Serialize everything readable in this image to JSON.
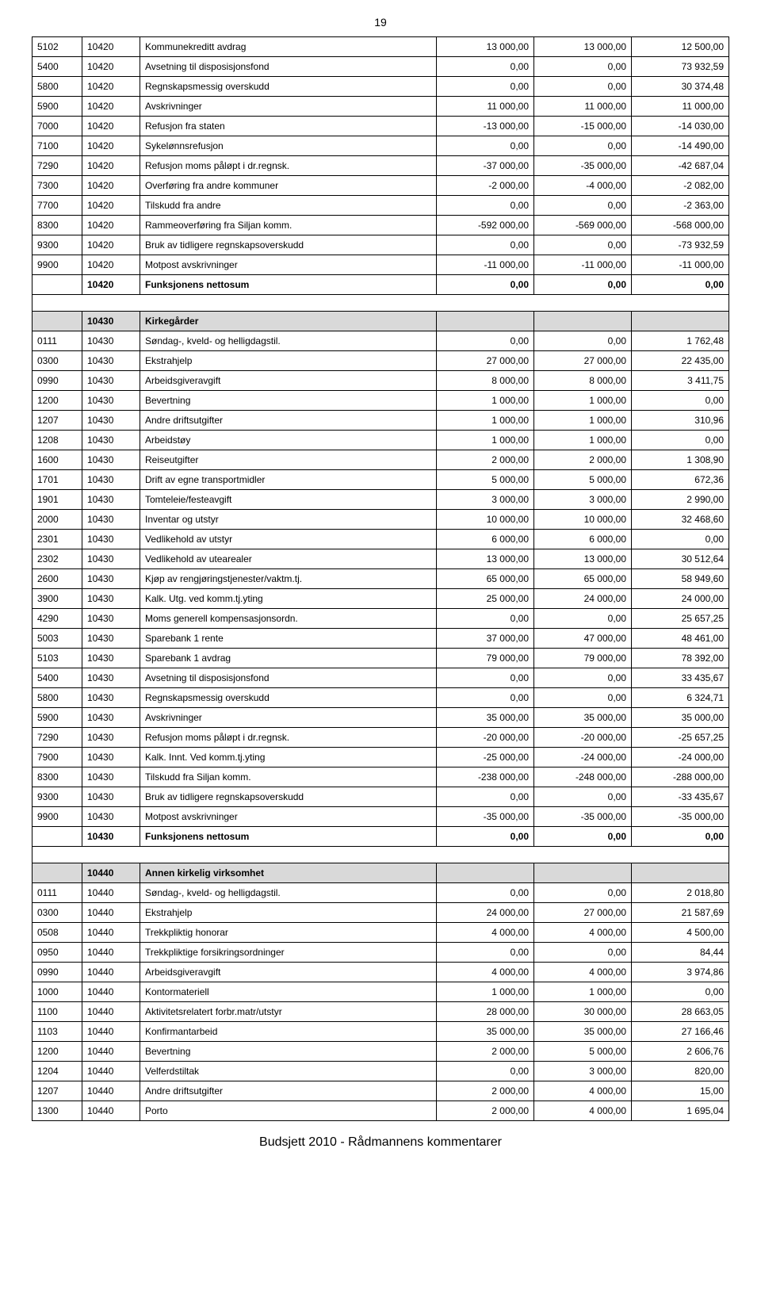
{
  "page_number": "19",
  "footer": "Budsjett 2010 - Rådmannens kommentarer",
  "sections": [
    {
      "rows": [
        {
          "c1": "5102",
          "c2": "10420",
          "desc": "Kommunekreditt avdrag",
          "v1": "13 000,00",
          "v2": "13 000,00",
          "v3": "12 500,00"
        },
        {
          "c1": "5400",
          "c2": "10420",
          "desc": "Avsetning til disposisjonsfond",
          "v1": "0,00",
          "v2": "0,00",
          "v3": "73 932,59"
        },
        {
          "c1": "5800",
          "c2": "10420",
          "desc": "Regnskapsmessig overskudd",
          "v1": "0,00",
          "v2": "0,00",
          "v3": "30 374,48"
        },
        {
          "c1": "5900",
          "c2": "10420",
          "desc": "Avskrivninger",
          "v1": "11 000,00",
          "v2": "11 000,00",
          "v3": "11 000,00"
        },
        {
          "c1": "7000",
          "c2": "10420",
          "desc": "Refusjon fra staten",
          "v1": "-13 000,00",
          "v2": "-15 000,00",
          "v3": "-14 030,00"
        },
        {
          "c1": "7100",
          "c2": "10420",
          "desc": "Sykelønnsrefusjon",
          "v1": "0,00",
          "v2": "0,00",
          "v3": "-14 490,00"
        },
        {
          "c1": "7290",
          "c2": "10420",
          "desc": "Refusjon moms påløpt i dr.regnsk.",
          "v1": "-37 000,00",
          "v2": "-35 000,00",
          "v3": "-42 687,04"
        },
        {
          "c1": "7300",
          "c2": "10420",
          "desc": "Overføring fra andre kommuner",
          "v1": "-2 000,00",
          "v2": "-4 000,00",
          "v3": "-2 082,00"
        },
        {
          "c1": "7700",
          "c2": "10420",
          "desc": "Tilskudd fra andre",
          "v1": "0,00",
          "v2": "0,00",
          "v3": "-2 363,00"
        },
        {
          "c1": "8300",
          "c2": "10420",
          "desc": "Rammeoverføring fra Siljan komm.",
          "v1": "-592 000,00",
          "v2": "-569 000,00",
          "v3": "-568 000,00"
        },
        {
          "c1": "9300",
          "c2": "10420",
          "desc": "Bruk av tidligere regnskapsoverskudd",
          "v1": "0,00",
          "v2": "0,00",
          "v3": "-73 932,59"
        },
        {
          "c1": "9900",
          "c2": "10420",
          "desc": "Motpost avskrivninger",
          "v1": "-11 000,00",
          "v2": "-11 000,00",
          "v3": "-11 000,00"
        }
      ],
      "sum": {
        "c1": "",
        "c2": "10420",
        "desc": "Funksjonens nettosum",
        "v1": "0,00",
        "v2": "0,00",
        "v3": "0,00"
      }
    },
    {
      "header": {
        "c1": "",
        "c2": "10430",
        "desc": "Kirkegårder",
        "v1": "",
        "v2": "",
        "v3": ""
      },
      "rows": [
        {
          "c1": "0111",
          "c2": "10430",
          "desc": "Søndag-, kveld- og helligdagstil.",
          "v1": "0,00",
          "v2": "0,00",
          "v3": "1 762,48"
        },
        {
          "c1": "0300",
          "c2": "10430",
          "desc": "Ekstrahjelp",
          "v1": "27 000,00",
          "v2": "27 000,00",
          "v3": "22 435,00"
        },
        {
          "c1": "0990",
          "c2": "10430",
          "desc": "Arbeidsgiveravgift",
          "v1": "8 000,00",
          "v2": "8 000,00",
          "v3": "3 411,75"
        },
        {
          "c1": "1200",
          "c2": "10430",
          "desc": "Bevertning",
          "v1": "1 000,00",
          "v2": "1 000,00",
          "v3": "0,00"
        },
        {
          "c1": "1207",
          "c2": "10430",
          "desc": "Andre driftsutgifter",
          "v1": "1 000,00",
          "v2": "1 000,00",
          "v3": "310,96"
        },
        {
          "c1": "1208",
          "c2": "10430",
          "desc": "Arbeidstøy",
          "v1": "1 000,00",
          "v2": "1 000,00",
          "v3": "0,00"
        },
        {
          "c1": "1600",
          "c2": "10430",
          "desc": "Reiseutgifter",
          "v1": "2 000,00",
          "v2": "2 000,00",
          "v3": "1 308,90"
        },
        {
          "c1": "1701",
          "c2": "10430",
          "desc": "Drift av egne transportmidler",
          "v1": "5 000,00",
          "v2": "5 000,00",
          "v3": "672,36"
        },
        {
          "c1": "1901",
          "c2": "10430",
          "desc": "Tomteleie/festeavgift",
          "v1": "3 000,00",
          "v2": "3 000,00",
          "v3": "2 990,00"
        },
        {
          "c1": "2000",
          "c2": "10430",
          "desc": "Inventar og utstyr",
          "v1": "10 000,00",
          "v2": "10 000,00",
          "v3": "32 468,60"
        },
        {
          "c1": "2301",
          "c2": "10430",
          "desc": "Vedlikehold av utstyr",
          "v1": "6 000,00",
          "v2": "6 000,00",
          "v3": "0,00"
        },
        {
          "c1": "2302",
          "c2": "10430",
          "desc": "Vedlikehold av utearealer",
          "v1": "13 000,00",
          "v2": "13 000,00",
          "v3": "30 512,64"
        },
        {
          "c1": "2600",
          "c2": "10430",
          "desc": "Kjøp av rengjøringstjenester/vaktm.tj.",
          "v1": "65 000,00",
          "v2": "65 000,00",
          "v3": "58 949,60"
        },
        {
          "c1": "3900",
          "c2": "10430",
          "desc": "Kalk. Utg. ved komm.tj.yting",
          "v1": "25 000,00",
          "v2": "24 000,00",
          "v3": "24 000,00"
        },
        {
          "c1": "4290",
          "c2": "10430",
          "desc": "Moms generell kompensasjonsordn.",
          "v1": "0,00",
          "v2": "0,00",
          "v3": "25 657,25"
        },
        {
          "c1": "5003",
          "c2": "10430",
          "desc": "Sparebank 1 rente",
          "v1": "37 000,00",
          "v2": "47 000,00",
          "v3": "48 461,00"
        },
        {
          "c1": "5103",
          "c2": "10430",
          "desc": "Sparebank 1 avdrag",
          "v1": "79 000,00",
          "v2": "79 000,00",
          "v3": "78 392,00"
        },
        {
          "c1": "5400",
          "c2": "10430",
          "desc": "Avsetning til disposisjonsfond",
          "v1": "0,00",
          "v2": "0,00",
          "v3": "33 435,67"
        },
        {
          "c1": "5800",
          "c2": "10430",
          "desc": "Regnskapsmessig overskudd",
          "v1": "0,00",
          "v2": "0,00",
          "v3": "6 324,71"
        },
        {
          "c1": "5900",
          "c2": "10430",
          "desc": "Avskrivninger",
          "v1": "35 000,00",
          "v2": "35 000,00",
          "v3": "35 000,00"
        },
        {
          "c1": "7290",
          "c2": "10430",
          "desc": "Refusjon moms påløpt i dr.regnsk.",
          "v1": "-20 000,00",
          "v2": "-20 000,00",
          "v3": "-25 657,25"
        },
        {
          "c1": "7900",
          "c2": "10430",
          "desc": "Kalk. Innt. Ved komm.tj.yting",
          "v1": "-25 000,00",
          "v2": "-24 000,00",
          "v3": "-24 000,00"
        },
        {
          "c1": "8300",
          "c2": "10430",
          "desc": "Tilskudd fra Siljan komm.",
          "v1": "-238 000,00",
          "v2": "-248 000,00",
          "v3": "-288 000,00"
        },
        {
          "c1": "9300",
          "c2": "10430",
          "desc": "Bruk av tidligere regnskapsoverskudd",
          "v1": "0,00",
          "v2": "0,00",
          "v3": "-33 435,67"
        },
        {
          "c1": "9900",
          "c2": "10430",
          "desc": "Motpost avskrivninger",
          "v1": "-35 000,00",
          "v2": "-35 000,00",
          "v3": "-35 000,00"
        }
      ],
      "sum": {
        "c1": "",
        "c2": "10430",
        "desc": "Funksjonens nettosum",
        "v1": "0,00",
        "v2": "0,00",
        "v3": "0,00"
      }
    },
    {
      "header": {
        "c1": "",
        "c2": "10440",
        "desc": "Annen kirkelig virksomhet",
        "v1": "",
        "v2": "",
        "v3": ""
      },
      "rows": [
        {
          "c1": "0111",
          "c2": "10440",
          "desc": "Søndag-, kveld- og helligdagstil.",
          "v1": "0,00",
          "v2": "0,00",
          "v3": "2 018,80"
        },
        {
          "c1": "0300",
          "c2": "10440",
          "desc": "Ekstrahjelp",
          "v1": "24 000,00",
          "v2": "27 000,00",
          "v3": "21 587,69"
        },
        {
          "c1": "0508",
          "c2": "10440",
          "desc": "Trekkpliktig honorar",
          "v1": "4 000,00",
          "v2": "4 000,00",
          "v3": "4 500,00"
        },
        {
          "c1": "0950",
          "c2": "10440",
          "desc": "Trekkpliktige forsikringsordninger",
          "v1": "0,00",
          "v2": "0,00",
          "v3": "84,44"
        },
        {
          "c1": "0990",
          "c2": "10440",
          "desc": "Arbeidsgiveravgift",
          "v1": "4 000,00",
          "v2": "4 000,00",
          "v3": "3 974,86"
        },
        {
          "c1": "1000",
          "c2": "10440",
          "desc": "Kontormateriell",
          "v1": "1 000,00",
          "v2": "1 000,00",
          "v3": "0,00"
        },
        {
          "c1": "1100",
          "c2": "10440",
          "desc": "Aktivitetsrelatert forbr.matr/utstyr",
          "v1": "28 000,00",
          "v2": "30 000,00",
          "v3": "28 663,05"
        },
        {
          "c1": "1103",
          "c2": "10440",
          "desc": "Konfirmantarbeid",
          "v1": "35 000,00",
          "v2": "35 000,00",
          "v3": "27 166,46"
        },
        {
          "c1": "1200",
          "c2": "10440",
          "desc": "Bevertning",
          "v1": "2 000,00",
          "v2": "5 000,00",
          "v3": "2 606,76"
        },
        {
          "c1": "1204",
          "c2": "10440",
          "desc": "Velferdstiltak",
          "v1": "0,00",
          "v2": "3 000,00",
          "v3": "820,00"
        },
        {
          "c1": "1207",
          "c2": "10440",
          "desc": "Andre driftsutgifter",
          "v1": "2 000,00",
          "v2": "4 000,00",
          "v3": "15,00"
        },
        {
          "c1": "1300",
          "c2": "10440",
          "desc": "Porto",
          "v1": "2 000,00",
          "v2": "4 000,00",
          "v3": "1 695,04"
        }
      ]
    }
  ]
}
